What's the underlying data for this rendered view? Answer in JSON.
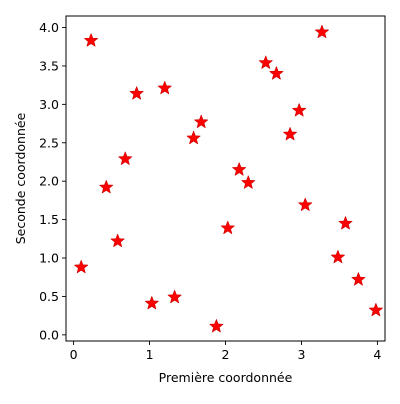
{
  "chart_data": {
    "type": "scatter",
    "title": "",
    "xlabel": "Première coordonnée",
    "ylabel": "Seconde coordonnée",
    "xlim": [
      -0.1,
      4.1
    ],
    "ylim": [
      -0.08,
      4.15
    ],
    "xticks": [
      0,
      1,
      2,
      3,
      4
    ],
    "xtick_labels": [
      "0",
      "1",
      "2",
      "3",
      "4"
    ],
    "yticks": [
      0.0,
      0.5,
      1.0,
      1.5,
      2.0,
      2.5,
      3.0,
      3.5,
      4.0
    ],
    "ytick_labels": [
      "0.0",
      "0.5",
      "1.0",
      "1.5",
      "2.0",
      "2.5",
      "3.0",
      "3.5",
      "4.0"
    ],
    "grid": false,
    "legend": "none",
    "marker": "star",
    "marker_color": "#ff0000",
    "marker_edge_color": "#cc0000",
    "series": [
      {
        "x": [
          0.1,
          0.23,
          0.43,
          0.58,
          0.68,
          0.83,
          1.03,
          1.2,
          1.33,
          1.58,
          1.68,
          1.88,
          2.03,
          2.18,
          2.3,
          2.53,
          2.67,
          2.85,
          2.97,
          3.05,
          3.27,
          3.48,
          3.58,
          3.75,
          3.98
        ],
        "y": [
          0.88,
          3.83,
          1.92,
          1.22,
          2.29,
          3.14,
          0.41,
          3.21,
          0.49,
          2.56,
          2.77,
          0.11,
          1.39,
          2.15,
          1.98,
          3.54,
          3.4,
          2.61,
          2.92,
          1.69,
          3.94,
          1.01,
          1.45,
          0.72,
          0.32
        ]
      }
    ]
  }
}
